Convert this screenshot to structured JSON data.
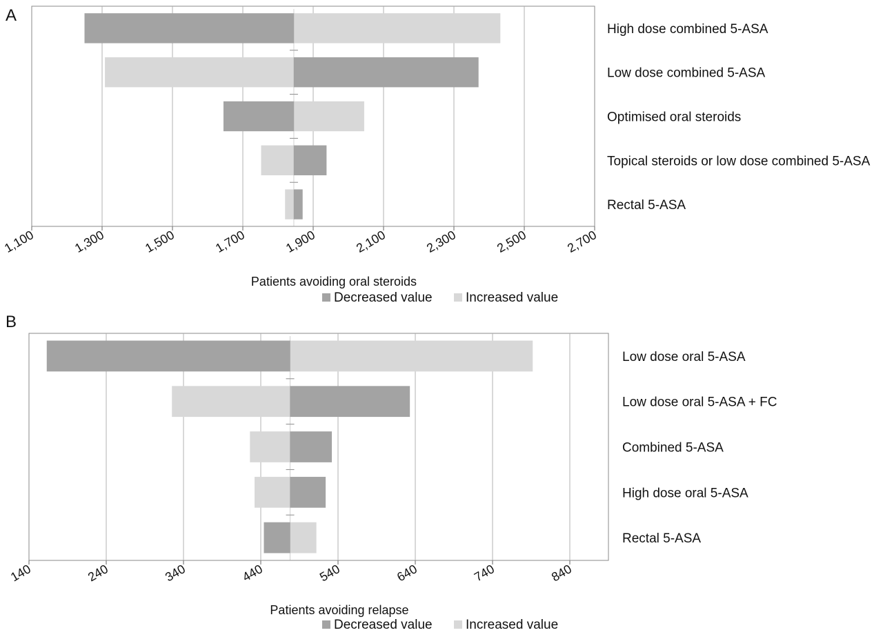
{
  "chart_data": [
    {
      "type": "bar",
      "orientation": "horizontal",
      "panel_label": "A",
      "xlabel": "Patients avoiding oral steroids",
      "xlim": [
        1100,
        2700
      ],
      "xticks": [
        1100,
        1300,
        1500,
        1700,
        1900,
        2100,
        2300,
        2500,
        2700
      ],
      "xtick_labels": [
        "1,100",
        "1,300",
        "1,500",
        "1,700",
        "1,900",
        "2,100",
        "2,300",
        "2,500",
        "2,700"
      ],
      "grid": true,
      "base_value": 1845,
      "categories": [
        "High dose combined 5-ASA",
        "Low dose combined 5-ASA",
        "Optimised oral steroids",
        "Topical steroids or low dose combined 5-ASA",
        "Rectal 5-ASA"
      ],
      "series": [
        {
          "name": "Decreased value",
          "color": "#a3a3a3",
          "low": [
            1250,
            1845,
            1645,
            1845,
            1845
          ],
          "high": [
            1845,
            2370,
            1845,
            1938,
            1870
          ]
        },
        {
          "name": "Increased value",
          "color": "#d8d8d8",
          "low": [
            1845,
            1308,
            1845,
            1752,
            1820
          ],
          "high": [
            2432,
            1845,
            2045,
            1845,
            1845
          ]
        }
      ],
      "legend": {
        "position": "bottom-right",
        "items": [
          "Decreased value",
          "Increased value"
        ]
      }
    },
    {
      "type": "bar",
      "orientation": "horizontal",
      "panel_label": "B",
      "xlabel": "Patients avoiding relapse",
      "xlim": [
        140,
        890
      ],
      "xticks": [
        140,
        240,
        340,
        440,
        540,
        640,
        740,
        840
      ],
      "xtick_labels": [
        "140",
        "240",
        "340",
        "440",
        "540",
        "640",
        "740",
        "840"
      ],
      "grid": true,
      "base_value": 478,
      "categories": [
        "Low dose oral 5-ASA",
        "Low dose oral 5-ASA + FC",
        "Combined 5-ASA",
        "High dose oral 5-ASA",
        "Rectal 5-ASA"
      ],
      "series": [
        {
          "name": "Decreased value",
          "color": "#a3a3a3",
          "low": [
            163,
            478,
            478,
            478,
            444
          ],
          "high": [
            478,
            633,
            532,
            524,
            478
          ]
        },
        {
          "name": "Increased value",
          "color": "#d8d8d8",
          "low": [
            478,
            325,
            426,
            432,
            478
          ],
          "high": [
            792,
            478,
            478,
            478,
            512
          ]
        }
      ],
      "legend": {
        "position": "bottom-right",
        "items": [
          "Decreased value",
          "Increased value"
        ]
      }
    }
  ]
}
